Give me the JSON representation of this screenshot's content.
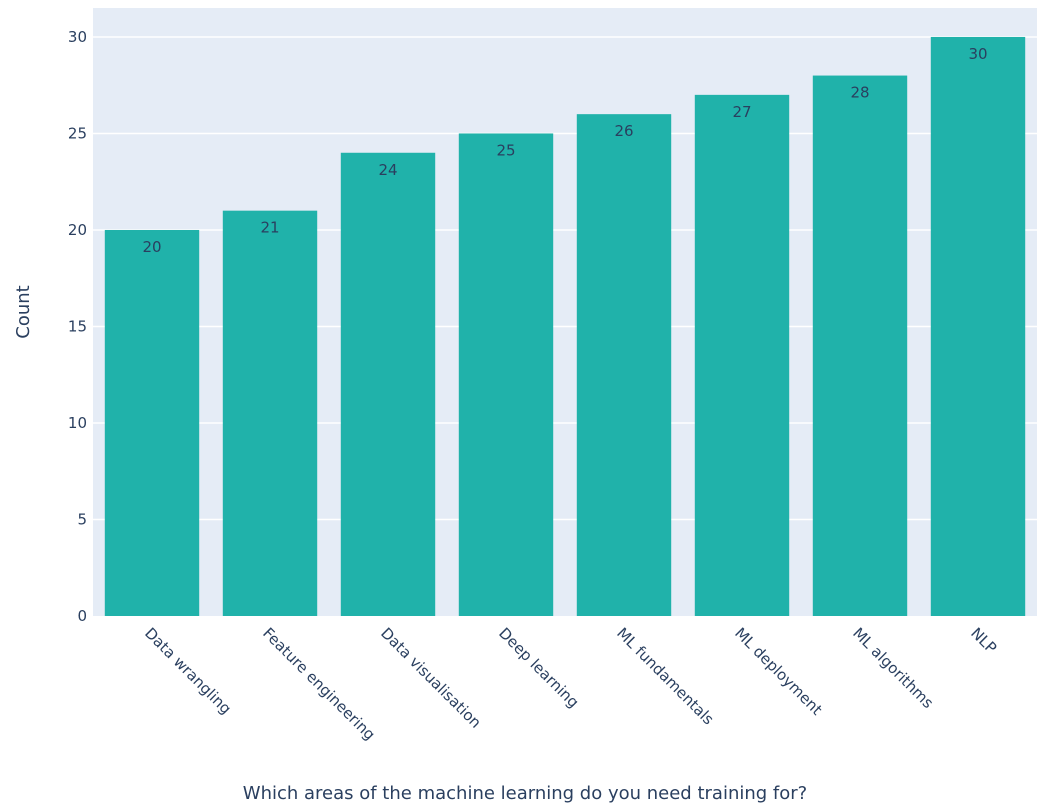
{
  "chart_data": {
    "type": "bar",
    "title": "",
    "xlabel": "Which areas of the machine learning do you need training for?",
    "ylabel": "Count",
    "categories": [
      "Data wrangling",
      "Feature engineering",
      "Data visualisation",
      "Deep learning",
      "ML fundamentals",
      "ML deployment",
      "ML algorithms",
      "NLP"
    ],
    "values": [
      20,
      21,
      24,
      25,
      26,
      27,
      28,
      30
    ],
    "ylim": [
      0,
      31.5
    ],
    "yticks": [
      0,
      5,
      10,
      15,
      20,
      25,
      30
    ],
    "grid": true,
    "legend": "none",
    "colors": {
      "bar": "#20b2aa",
      "plot_background": "#e5ecf6",
      "gridline": "#ffffff",
      "text": "#2a3f5f"
    }
  }
}
